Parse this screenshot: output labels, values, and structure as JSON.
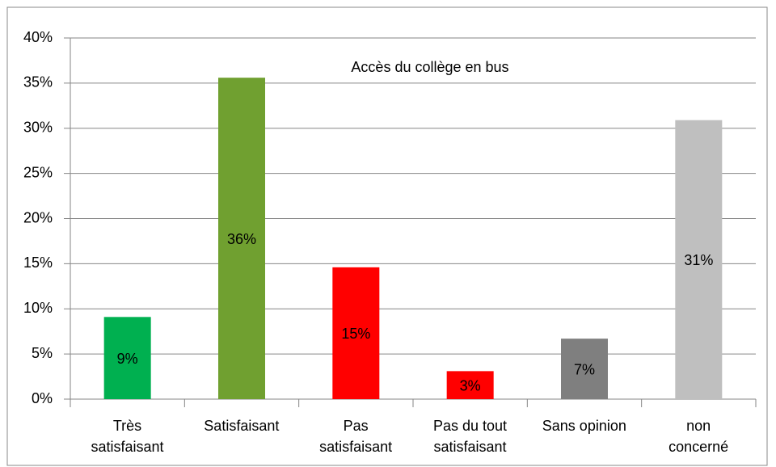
{
  "chart_data": {
    "type": "bar",
    "title": "Accès du collège en bus",
    "categories": [
      "Très\nsatisfaisant",
      "Satisfaisant",
      "Pas\nsatisfaisant",
      "Pas du tout\nsatisfaisant",
      "Sans opinion",
      "non\nconcerné"
    ],
    "values": [
      9.1,
      35.6,
      14.6,
      3.1,
      6.7,
      30.9
    ],
    "value_labels": [
      "9%",
      "36%",
      "15%",
      "3%",
      "7%",
      "31%"
    ],
    "colors": [
      "#00b050",
      "#70a030",
      "#ff0000",
      "#ff0000",
      "#7f7f7f",
      "#bfbfbf"
    ],
    "ylim": [
      0,
      40
    ],
    "yticks": [
      {
        "value": 0,
        "label": "0%"
      },
      {
        "value": 5,
        "label": "5%"
      },
      {
        "value": 10,
        "label": "10%"
      },
      {
        "value": 15,
        "label": "15%"
      },
      {
        "value": 20,
        "label": "20%"
      },
      {
        "value": 25,
        "label": "25%"
      },
      {
        "value": 30,
        "label": "30%"
      },
      {
        "value": 35,
        "label": "35%"
      },
      {
        "value": 40,
        "label": "40%"
      }
    ],
    "grid": true
  }
}
